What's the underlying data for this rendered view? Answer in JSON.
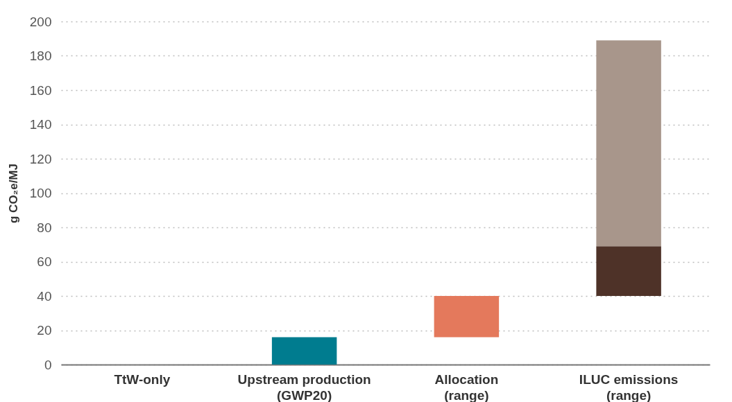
{
  "chart_data": {
    "type": "bar",
    "ylabel": "g CO₂e/MJ",
    "categories": [
      "TtW-only",
      "Upstream production\n(GWP20)",
      "Allocation\n(range)",
      "ILUC emissions\n(range)"
    ],
    "series": [
      {
        "values": [
          null,
          16,
          null,
          29
        ],
        "base": [
          null,
          0,
          null,
          40
        ],
        "colors": [
          null,
          "#007c8f",
          null,
          "#4e3228"
        ]
      },
      {
        "values": [
          null,
          null,
          24,
          120
        ],
        "base": [
          null,
          null,
          16,
          69
        ],
        "colors": [
          null,
          null,
          "#e4795c",
          "#a8968b"
        ]
      }
    ],
    "ylim": [
      0,
      200
    ],
    "yticks": [
      0,
      20,
      40,
      60,
      80,
      100,
      120,
      140,
      160,
      180,
      200
    ],
    "grid": "y"
  }
}
